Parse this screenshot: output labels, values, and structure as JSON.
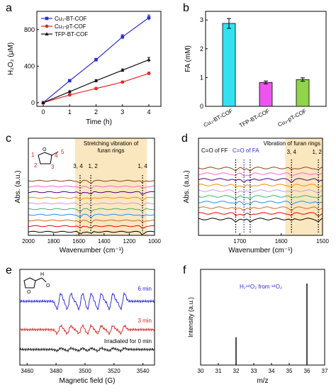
{
  "chart_data": [
    {
      "panel": "a",
      "type": "line",
      "xlabel": "Time (h)",
      "ylabel": "H₂O₂ (μM)",
      "xlim": [
        0,
        4
      ],
      "ylim": [
        -40,
        1000
      ],
      "xticks": [
        0,
        1,
        2,
        3,
        4
      ],
      "yticks": [
        0,
        400,
        800
      ],
      "x": [
        0,
        1,
        2,
        3,
        4
      ],
      "series": [
        {
          "name": "Cu₃-BT-COF",
          "color": "#2b2bd9",
          "marker": "square",
          "values": [
            0,
            240,
            470,
            720,
            930
          ],
          "errors": [
            0,
            14,
            16,
            25,
            30
          ]
        },
        {
          "name": "Cu₃-pT-COF",
          "color": "#e32727",
          "marker": "circle",
          "values": [
            0,
            85,
            155,
            225,
            320
          ],
          "errors": [
            0,
            8,
            10,
            12,
            15
          ]
        },
        {
          "name": "TFP-BT-COF",
          "color": "#111111",
          "marker": "triangle",
          "values": [
            0,
            120,
            240,
            355,
            470
          ],
          "errors": [
            0,
            10,
            12,
            14,
            25
          ]
        }
      ],
      "legend_position": "top-left",
      "grid": false
    },
    {
      "panel": "b",
      "type": "bar",
      "ylabel": "FA (mM)",
      "ylim": [
        0,
        3.3
      ],
      "yticks": [
        0,
        1,
        2,
        3
      ],
      "categories": [
        "Cu₃-BT-COF",
        "TFP-BT-COF",
        "Cu₃-pT-COF"
      ],
      "values": [
        2.88,
        0.83,
        0.93
      ],
      "errors": [
        0.17,
        0.05,
        0.06
      ],
      "colors": [
        "#33e1f0",
        "#ee55ee",
        "#8fd44b"
      ],
      "grid": false
    },
    {
      "panel": "c",
      "type": "line",
      "xlabel": "Wavenumber (cm⁻¹)",
      "ylabel": "Abs. (a.u.)",
      "xlim": [
        2000,
        1000
      ],
      "reversed_x": true,
      "xticks": [
        2000,
        1800,
        1600,
        1400,
        1200,
        1000
      ],
      "highlight_band": [
        1630,
        1060
      ],
      "highlight_label": "Stretching vibration of furan rings",
      "annotations": [
        "3, 4",
        "1, 2",
        "1, 4"
      ],
      "marker_lines": [
        1590,
        1505,
        1095
      ],
      "structure_labels": [
        "1",
        "2",
        "3",
        "4",
        "5"
      ],
      "spectra_colors": [
        "#8b4513",
        "#ff66cc",
        "#4b0082",
        "#ff8c00",
        "#c8a2c8",
        "#3cb371",
        "#1e90ff",
        "#d2691e",
        "#ff0000",
        "#000000"
      ],
      "spectra_offsets": [
        10,
        9,
        8,
        7,
        6,
        5,
        4,
        3,
        2,
        1
      ]
    },
    {
      "panel": "d",
      "type": "line",
      "xlabel": "Wavenumber (cm⁻¹)",
      "ylabel": "Abs. (a.u.)",
      "xlim": [
        1800,
        1500
      ],
      "reversed_x": true,
      "xticks": [
        1700,
        1600,
        1500
      ],
      "highlight_band": [
        1590,
        1500
      ],
      "highlight_label": "Vibration of furan rings",
      "annotations": [
        "C=O of FF",
        "C=O of FA",
        "3, 4",
        "1, 2"
      ],
      "marker_lines": [
        1675,
        1710,
        1690,
        1575,
        1510
      ],
      "spectra_colors": [
        "#8b4513",
        "#ff66cc",
        "#4b0082",
        "#ff8c00",
        "#c8a2c8",
        "#3cb371",
        "#1e90ff",
        "#d2691e",
        "#ff0000",
        "#000000"
      ]
    },
    {
      "panel": "e",
      "type": "line",
      "xlabel": "Magnetic field (G)",
      "xlim": [
        3455,
        3548
      ],
      "xticks": [
        3460,
        3480,
        3500,
        3520,
        3540
      ],
      "series": [
        {
          "name": "6 min",
          "color": "#1f1fdd"
        },
        {
          "name": "3 min",
          "color": "#dd1f1f"
        },
        {
          "name": "Irradiated for 0 min",
          "color": "#111111"
        }
      ],
      "peak_positions": [
        3482,
        3489,
        3497,
        3503,
        3510,
        3518,
        3526
      ]
    },
    {
      "panel": "f",
      "type": "bar",
      "xlabel": "m/z",
      "ylabel": "Intensity (a.u.)",
      "xlim": [
        30,
        37
      ],
      "xticks": [
        30,
        31,
        32,
        33,
        34,
        35,
        36,
        37
      ],
      "x": [
        32,
        36
      ],
      "values": [
        0.34,
        1.0
      ],
      "annotation": "H₂¹⁸O₂ from ¹⁸O₂"
    }
  ],
  "panels": {
    "a": {
      "letter": "a",
      "xlabel": "Time (h)",
      "ylabel": "H₂O₂ (μM)"
    },
    "b": {
      "letter": "b",
      "ylabel": "FA (mM)"
    },
    "c": {
      "letter": "c",
      "xlabel": "Wavenumber (cm⁻¹)",
      "ylabel": "Abs. (a.u.)",
      "band_label_1": "Stretching vibration of",
      "band_label_2": "furan rings"
    },
    "d": {
      "letter": "d",
      "xlabel": "Wavenumber (cm⁻¹)",
      "ylabel": "Abs. (a.u.)",
      "band_label": "Vibration of furan rings",
      "co_ff": "C=O of FF",
      "co_fa": "C=O of FA"
    },
    "e": {
      "letter": "e",
      "xlabel": "Magnetic field (G)",
      "ylabel": "",
      "label_6": "6 min",
      "label_3": "3 min",
      "label_0": "Irradiated for 0 min"
    },
    "f": {
      "letter": "f",
      "xlabel": "m/z",
      "ylabel": "Intensity (a.u.)",
      "annotation": "H₂¹⁸O₂ from ¹⁸O₂"
    }
  }
}
